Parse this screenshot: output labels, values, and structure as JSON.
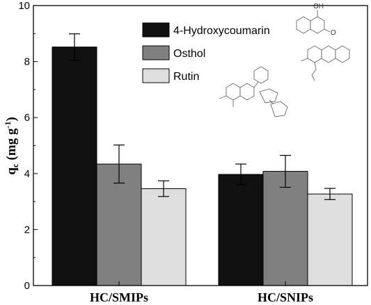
{
  "chart_data": {
    "type": "bar",
    "categories": [
      "HC/SMIPs",
      "HC/SNIPs"
    ],
    "series": [
      {
        "name": "4-Hydroxycoumarin",
        "values": [
          8.52,
          3.97
        ],
        "errors": [
          0.47,
          0.37
        ],
        "color": "#111111"
      },
      {
        "name": "Osthol",
        "values": [
          4.34,
          4.08
        ],
        "errors": [
          0.68,
          0.57
        ],
        "color": "#808080"
      },
      {
        "name": "Rutin",
        "values": [
          3.46,
          3.27
        ],
        "errors": [
          0.28,
          0.2
        ],
        "color": "#dedede"
      }
    ],
    "ylabel_main": "q",
    "ylabel_sub": "c",
    "ylabel_unit": " (mg g",
    "ylabel_exp": "-1",
    "ylabel_close": ")",
    "ylim": [
      0,
      10
    ],
    "yticks": [
      0,
      2,
      4,
      6,
      8,
      10
    ],
    "legend_placement": "top-right",
    "molecule_text": {
      "hydroxy_label": "OH",
      "oxygen_label": "O"
    }
  }
}
